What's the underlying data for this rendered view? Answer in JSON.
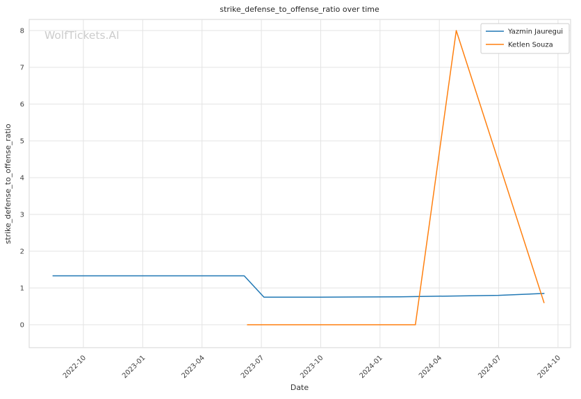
{
  "watermark": "WolfTickets.AI",
  "chart_data": {
    "type": "line",
    "title": "strike_defense_to_offense_ratio over time",
    "xlabel": "Date",
    "ylabel": "strike_defense_to_offense_ratio",
    "grid": true,
    "legend_position": "upper right",
    "ylim": [
      -0.4,
      8.45
    ],
    "yticks": [
      0,
      1,
      2,
      3,
      4,
      5,
      6,
      7,
      8
    ],
    "xticks": [
      "2022-10",
      "2023-01",
      "2023-04",
      "2023-07",
      "2023-10",
      "2024-01",
      "2024-04",
      "2024-07",
      "2024-10"
    ],
    "series": [
      {
        "name": "Yazmin Jauregui",
        "color": "#1f77b4",
        "points": [
          {
            "date": "2022-08-15",
            "value": 1.33
          },
          {
            "date": "2023-06-05",
            "value": 1.33
          },
          {
            "date": "2023-07-05",
            "value": 0.75
          },
          {
            "date": "2023-10-01",
            "value": 0.75
          },
          {
            "date": "2024-02-01",
            "value": 0.76
          },
          {
            "date": "2024-07-01",
            "value": 0.8
          },
          {
            "date": "2024-09-10",
            "value": 0.85
          }
        ]
      },
      {
        "name": "Ketlen Souza",
        "color": "#ff7f0e",
        "points": [
          {
            "date": "2023-06-10",
            "value": 0.0
          },
          {
            "date": "2024-02-25",
            "value": 0.0
          },
          {
            "date": "2024-04-27",
            "value": 8.0
          },
          {
            "date": "2024-09-10",
            "value": 0.6
          }
        ]
      }
    ]
  }
}
